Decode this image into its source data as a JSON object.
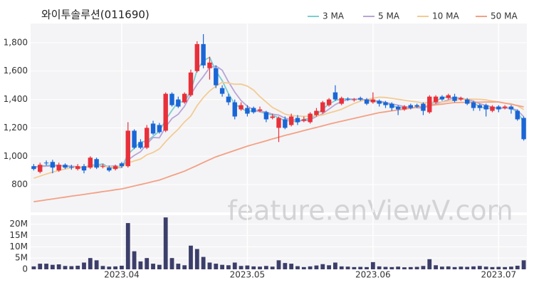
{
  "chart_data": [
    {
      "type": "candlestick",
      "title": "와이투솔루션(011690)",
      "watermark": "feature.enViewV.com",
      "ylim": [
        605,
        1935
      ],
      "yticks": [
        800,
        {
          "value": 1000,
          "label": "1,000"
        },
        {
          "value": 1200,
          "label": "1,200"
        },
        {
          "value": 1400,
          "label": "1,400"
        },
        {
          "value": 1600,
          "label": "1,600"
        },
        {
          "value": 1800,
          "label": "1,800"
        }
      ],
      "grid": true,
      "legend": "top-right",
      "up_color": "#e8303a",
      "down_color": "#1a66d6",
      "open": [
        930,
        890,
        955,
        960,
        900,
        940,
        925,
        910,
        930,
        920,
        980,
        925,
        920,
        910,
        950,
        930,
        1180,
        1100,
        1060,
        1230,
        1220,
        1180,
        1440,
        1400,
        1380,
        1430,
        1600,
        1790,
        1620,
        1620,
        1480,
        1420,
        1380,
        1330,
        1340,
        1340,
        1320,
        1310,
        1270,
        1200,
        1260,
        1220,
        1270,
        1250,
        1240,
        1290,
        1310,
        1360,
        1450,
        1370,
        1405,
        1395,
        1410,
        1400,
        1380,
        1390,
        1380,
        1370,
        1350,
        1330,
        1360,
        1360,
        1370,
        1310,
        1380,
        1420,
        1410,
        1420,
        1400,
        1400,
        1380,
        1360,
        1360,
        1320,
        1350,
        1340,
        1350,
        1320,
        1270
      ],
      "high": [
        945,
        955,
        970,
        975,
        955,
        950,
        940,
        945,
        945,
        1000,
        990,
        945,
        935,
        940,
        960,
        1240,
        1190,
        1120,
        1220,
        1250,
        1235,
        1450,
        1450,
        1420,
        1450,
        1610,
        1810,
        1860,
        1700,
        1640,
        1500,
        1440,
        1400,
        1380,
        1360,
        1350,
        1350,
        1320,
        1300,
        1280,
        1280,
        1300,
        1290,
        1280,
        1310,
        1340,
        1390,
        1410,
        1500,
        1420,
        1415,
        1410,
        1420,
        1410,
        1450,
        1400,
        1390,
        1380,
        1360,
        1360,
        1370,
        1370,
        1380,
        1430,
        1430,
        1430,
        1440,
        1440,
        1420,
        1410,
        1390,
        1370,
        1370,
        1360,
        1360,
        1360,
        1360,
        1330,
        1280
      ],
      "low": [
        900,
        880,
        935,
        880,
        890,
        910,
        905,
        900,
        880,
        910,
        910,
        915,
        890,
        900,
        920,
        920,
        1050,
        1050,
        1050,
        1150,
        1160,
        1170,
        1350,
        1340,
        1370,
        1420,
        1590,
        1620,
        1540,
        1480,
        1420,
        1360,
        1260,
        1320,
        1280,
        1300,
        1310,
        1240,
        1260,
        1100,
        1190,
        1210,
        1220,
        1240,
        1230,
        1280,
        1300,
        1350,
        1390,
        1360,
        1390,
        1385,
        1390,
        1360,
        1370,
        1350,
        1340,
        1320,
        1290,
        1320,
        1330,
        1340,
        1290,
        1300,
        1370,
        1390,
        1400,
        1380,
        1390,
        1360,
        1320,
        1320,
        1280,
        1310,
        1310,
        1330,
        1300,
        1250,
        1110
      ],
      "close": [
        910,
        940,
        950,
        920,
        940,
        920,
        920,
        930,
        900,
        990,
        920,
        930,
        900,
        930,
        930,
        1180,
        1060,
        1060,
        1200,
        1160,
        1170,
        1440,
        1360,
        1350,
        1440,
        1590,
        1790,
        1640,
        1660,
        1500,
        1440,
        1380,
        1280,
        1360,
        1300,
        1310,
        1330,
        1260,
        1280,
        1270,
        1200,
        1280,
        1240,
        1260,
        1300,
        1320,
        1380,
        1400,
        1400,
        1410,
        1400,
        1400,
        1400,
        1370,
        1400,
        1370,
        1360,
        1340,
        1330,
        1350,
        1340,
        1350,
        1320,
        1420,
        1420,
        1400,
        1430,
        1390,
        1410,
        1370,
        1340,
        1340,
        1330,
        1350,
        1330,
        1350,
        1330,
        1260,
        1120
      ],
      "series": [
        {
          "name": "3 MA",
          "color": "#79cfd0",
          "values": [
            920,
            930,
            935,
            937,
            937,
            927,
            927,
            923,
            917,
            940,
            937,
            947,
            917,
            920,
            920,
            1013,
            1057,
            1100,
            1107,
            1140,
            1177,
            1257,
            1323,
            1383,
            1383,
            1460,
            1607,
            1673,
            1697,
            1600,
            1533,
            1440,
            1367,
            1340,
            1313,
            1323,
            1313,
            1300,
            1290,
            1270,
            1250,
            1250,
            1240,
            1260,
            1267,
            1293,
            1333,
            1367,
            1393,
            1403,
            1403,
            1403,
            1400,
            1390,
            1390,
            1380,
            1377,
            1357,
            1343,
            1340,
            1340,
            1347,
            1337,
            1363,
            1387,
            1413,
            1417,
            1407,
            1410,
            1390,
            1373,
            1350,
            1337,
            1340,
            1337,
            1343,
            1337,
            1313,
            1237
          ]
        },
        {
          "name": "5 MA",
          "color": "#b8a5d6",
          "values": [
            925,
            928,
            930,
            932,
            932,
            934,
            930,
            926,
            918,
            932,
            932,
            934,
            928,
            934,
            922,
            974,
            1006,
            1032,
            1086,
            1132,
            1130,
            1206,
            1266,
            1296,
            1352,
            1436,
            1506,
            1562,
            1624,
            1636,
            1606,
            1524,
            1452,
            1392,
            1352,
            1326,
            1316,
            1312,
            1296,
            1290,
            1268,
            1258,
            1254,
            1250,
            1256,
            1280,
            1300,
            1332,
            1364,
            1386,
            1398,
            1402,
            1402,
            1396,
            1394,
            1388,
            1380,
            1368,
            1360,
            1350,
            1344,
            1342,
            1338,
            1356,
            1370,
            1382,
            1398,
            1412,
            1410,
            1400,
            1388,
            1370,
            1358,
            1346,
            1338,
            1340,
            1338,
            1324,
            1278
          ]
        },
        {
          "name": "10 MA",
          "color": "#f3cb93",
          "values": [
            845,
            860,
            875,
            888,
            900,
            910,
            918,
            924,
            926,
            930,
            931,
            930,
            925,
            926,
            927,
            953,
            967,
            980,
            1010,
            1027,
            1052,
            1103,
            1149,
            1191,
            1242,
            1283,
            1356,
            1414,
            1460,
            1494,
            1521,
            1515,
            1507,
            1508,
            1494,
            1466,
            1420,
            1382,
            1344,
            1321,
            1297,
            1287,
            1283,
            1281,
            1283,
            1284,
            1291,
            1305,
            1317,
            1331,
            1352,
            1372,
            1388,
            1399,
            1409,
            1416,
            1414,
            1408,
            1401,
            1395,
            1388,
            1383,
            1375,
            1380,
            1382,
            1381,
            1388,
            1393,
            1401,
            1403,
            1402,
            1401,
            1397,
            1390,
            1381,
            1374,
            1370,
            1355,
            1329
          ]
        },
        {
          "name": "50 MA",
          "color": "#f4a085",
          "values": [
            680,
            686,
            693,
            699,
            706,
            712,
            719,
            725,
            731,
            738,
            744,
            751,
            757,
            764,
            770,
            780,
            791,
            801,
            811,
            822,
            832,
            848,
            864,
            879,
            895,
            915,
            935,
            956,
            976,
            996,
            1011,
            1026,
            1041,
            1056,
            1071,
            1084,
            1096,
            1109,
            1122,
            1134,
            1147,
            1158,
            1169,
            1181,
            1192,
            1203,
            1214,
            1226,
            1237,
            1247,
            1257,
            1267,
            1277,
            1287,
            1297,
            1307,
            1313,
            1320,
            1326,
            1332,
            1338,
            1345,
            1351,
            1357,
            1362,
            1367,
            1373,
            1378,
            1379,
            1380,
            1380,
            1381,
            1382,
            1382,
            1383,
            1374,
            1366,
            1357,
            1348
          ]
        }
      ]
    },
    {
      "type": "bar",
      "color": "#3c3e6a",
      "grid": true,
      "ylim": [
        0,
        24000000
      ],
      "yticks": [
        0,
        {
          "value": 5000000,
          "label": "5M"
        },
        {
          "value": 10000000,
          "label": "10M"
        },
        {
          "value": 15000000,
          "label": "15M"
        },
        {
          "value": 20000000,
          "label": "20M"
        }
      ],
      "categories": [
        null,
        null,
        null,
        null,
        null,
        null,
        null,
        null,
        null,
        null,
        null,
        null,
        null,
        null,
        "2023.04",
        null,
        null,
        null,
        null,
        null,
        null,
        null,
        null,
        null,
        null,
        null,
        null,
        null,
        null,
        null,
        null,
        null,
        null,
        null,
        "2023.05",
        null,
        null,
        null,
        null,
        null,
        null,
        null,
        null,
        null,
        null,
        null,
        null,
        null,
        null,
        null,
        null,
        null,
        null,
        null,
        "2023.06",
        null,
        null,
        null,
        null,
        null,
        null,
        null,
        null,
        null,
        null,
        null,
        null,
        null,
        null,
        null,
        null,
        null,
        null,
        null,
        "2023.07",
        null,
        null,
        null,
        null
      ],
      "values": [
        1300000,
        2500000,
        2500000,
        2000000,
        2200000,
        1500000,
        1400000,
        1600000,
        3000000,
        5000000,
        4000000,
        1500000,
        1200000,
        1300000,
        1600000,
        20500000,
        8000000,
        3500000,
        5000000,
        2500000,
        2000000,
        23000000,
        5000000,
        2500000,
        1800000,
        10500000,
        9000000,
        5500000,
        3000000,
        2500000,
        2000000,
        1800000,
        3000000,
        1500000,
        1700000,
        1300000,
        1200000,
        1500000,
        1200000,
        4000000,
        2800000,
        2500000,
        1400000,
        1000000,
        1300000,
        1700000,
        2300000,
        1800000,
        3000000,
        1300000,
        1200000,
        1000000,
        1100000,
        1000000,
        3200000,
        1300000,
        1100000,
        1000000,
        1200000,
        900000,
        1000000,
        1100000,
        1500000,
        4500000,
        1800000,
        1200000,
        1300000,
        1000000,
        1200000,
        1100000,
        1300000,
        1500000,
        1200000,
        1000000,
        1100000,
        1000000,
        1200000,
        1600000,
        4000000
      ]
    }
  ]
}
